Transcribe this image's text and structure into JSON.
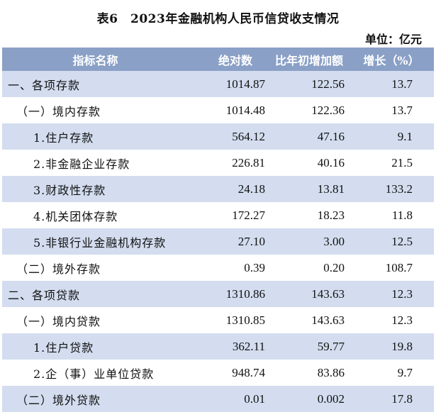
{
  "title": "表6　2023年金融机构人民币信贷收支情况",
  "unit": "单位：亿元",
  "columns": [
    "指标名称",
    "绝对数",
    "比年初增加额",
    "增长（%）"
  ],
  "rows": [
    {
      "name": "一、各项存款",
      "abs": "1014.87",
      "inc": "122.56",
      "growth": "13.7"
    },
    {
      "name": "（一）境内存款",
      "abs": "1014.48",
      "inc": "122.36",
      "growth": "13.7"
    },
    {
      "name": "1.住户存款",
      "abs": "564.12",
      "inc": "47.16",
      "growth": "9.1"
    },
    {
      "name": "2.非金融企业存款",
      "abs": "226.81",
      "inc": "40.16",
      "growth": "21.5"
    },
    {
      "name": "3.财政性存款",
      "abs": "24.18",
      "inc": "13.81",
      "growth": "133.2"
    },
    {
      "name": "4.机关团体存款",
      "abs": "172.27",
      "inc": "18.23",
      "growth": "11.8"
    },
    {
      "name": "5.非银行业金融机构存款",
      "abs": "27.10",
      "inc": "3.00",
      "growth": "12.5"
    },
    {
      "name": "（二）境外存款",
      "abs": "0.39",
      "inc": "0.20",
      "growth": "108.7"
    },
    {
      "name": "二、各项贷款",
      "abs": "1310.86",
      "inc": "143.63",
      "growth": "12.3"
    },
    {
      "name": "（一）境内贷款",
      "abs": "1310.85",
      "inc": "143.63",
      "growth": "12.3"
    },
    {
      "name": "1.住户贷款",
      "abs": "362.11",
      "inc": "59.77",
      "growth": "19.8"
    },
    {
      "name": "2.企（事）业单位贷款",
      "abs": "948.74",
      "inc": "83.86",
      "growth": "9.7"
    },
    {
      "name": "（二）境外贷款",
      "abs": "0.01",
      "inc": "0.002",
      "growth": "17.8"
    }
  ]
}
